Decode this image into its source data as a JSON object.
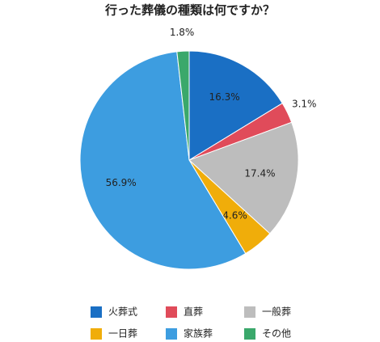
{
  "chart_data": {
    "type": "pie",
    "title": "行った葬儀の種類は何ですか？",
    "categories": [
      "火葬式",
      "直葬",
      "一般葬",
      "一日葬",
      "家族葬",
      "その他"
    ],
    "values": [
      16.3,
      3.1,
      17.4,
      4.6,
      56.9,
      1.8
    ],
    "value_labels": [
      "16.3%",
      "3.1%",
      "17.4%",
      "4.6%",
      "56.9%",
      "1.8%"
    ],
    "colors": [
      "#1a6fc4",
      "#e04b5a",
      "#bdbdbd",
      "#f0ad0a",
      "#3d9de0",
      "#3aa86b"
    ],
    "legend": "bottom"
  }
}
